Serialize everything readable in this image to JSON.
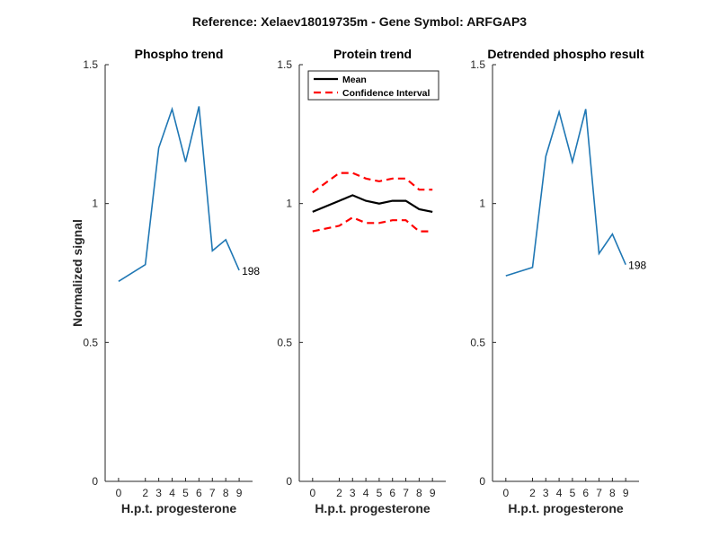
{
  "figure": {
    "title": "Reference:  Xelaev18019735m - Gene Symbol:  ARFGAP3"
  },
  "chart_data": [
    {
      "type": "line",
      "title": "Phospho trend",
      "xlabel": "H.p.t. progesterone",
      "ylabel": "Normalized signal",
      "x": [
        0,
        2,
        3,
        4,
        5,
        6,
        7,
        8,
        9
      ],
      "xticks": [
        "0",
        "2",
        "3",
        "4",
        "5",
        "6",
        "7",
        "8",
        "9"
      ],
      "ylim": [
        0,
        1.5
      ],
      "yticks": [
        "0",
        "0.5",
        "1",
        "1.5"
      ],
      "grid": false,
      "series": [
        {
          "values": [
            0.72,
            0.78,
            1.2,
            1.34,
            1.15,
            1.35,
            0.83,
            0.87,
            0.76
          ],
          "color": "#1f77b4",
          "style": "solid"
        }
      ],
      "annotations": [
        {
          "text": "198",
          "at_index": 8
        }
      ]
    },
    {
      "type": "line",
      "title": "Protein trend",
      "xlabel": "H.p.t. progesterone",
      "ylabel": "",
      "x": [
        0,
        2,
        3,
        4,
        5,
        6,
        7,
        8,
        9
      ],
      "xticks": [
        "0",
        "2",
        "3",
        "4",
        "5",
        "6",
        "7",
        "8",
        "9"
      ],
      "ylim": [
        0,
        1.5
      ],
      "yticks": [
        "0",
        "0.5",
        "1",
        "1.5"
      ],
      "grid": false,
      "legend_position": "top-left",
      "series": [
        {
          "name": "Mean",
          "values": [
            0.97,
            1.01,
            1.03,
            1.01,
            1.0,
            1.01,
            1.01,
            0.98,
            0.97
          ],
          "color": "#000000",
          "style": "solid"
        },
        {
          "name": "Confidence Interval",
          "values": [
            1.04,
            1.11,
            1.11,
            1.09,
            1.08,
            1.09,
            1.09,
            1.05,
            1.05
          ],
          "color": "#ff0000",
          "style": "dashed"
        },
        {
          "values": [
            0.9,
            0.92,
            0.95,
            0.93,
            0.93,
            0.94,
            0.94,
            0.9,
            0.9
          ],
          "color": "#ff0000",
          "style": "dashed"
        }
      ]
    },
    {
      "type": "line",
      "title": "Detrended phospho result",
      "xlabel": "H.p.t. progesterone",
      "ylabel": "",
      "x": [
        0,
        2,
        3,
        4,
        5,
        6,
        7,
        8,
        9
      ],
      "xticks": [
        "0",
        "2",
        "3",
        "4",
        "5",
        "6",
        "7",
        "8",
        "9"
      ],
      "ylim": [
        0,
        1.5
      ],
      "yticks": [
        "0",
        "0.5",
        "1",
        "1.5"
      ],
      "grid": false,
      "series": [
        {
          "values": [
            0.74,
            0.77,
            1.17,
            1.33,
            1.15,
            1.34,
            0.82,
            0.89,
            0.78
          ],
          "color": "#1f77b4",
          "style": "solid"
        }
      ],
      "annotations": [
        {
          "text": "198",
          "at_index": 8
        }
      ]
    }
  ]
}
